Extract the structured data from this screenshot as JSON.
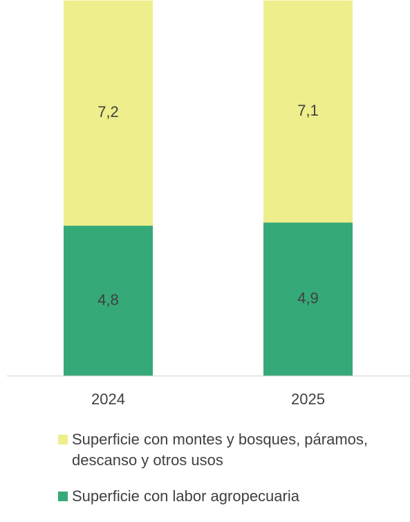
{
  "chart_data": {
    "type": "stacked_bar",
    "categories": [
      "2024",
      "2025"
    ],
    "series": [
      {
        "name": "Superficie con labor agropecuaria",
        "color": "#35a978",
        "values": [
          4.8,
          4.9
        ],
        "value_labels": [
          "4,8",
          "4,9"
        ]
      },
      {
        "name": "Superficie con montes y bosques, páramos, descanso y otros usos",
        "color": "#eeee8c",
        "values": [
          7.2,
          7.1
        ],
        "value_labels": [
          "7,2",
          "7,1"
        ]
      }
    ]
  }
}
